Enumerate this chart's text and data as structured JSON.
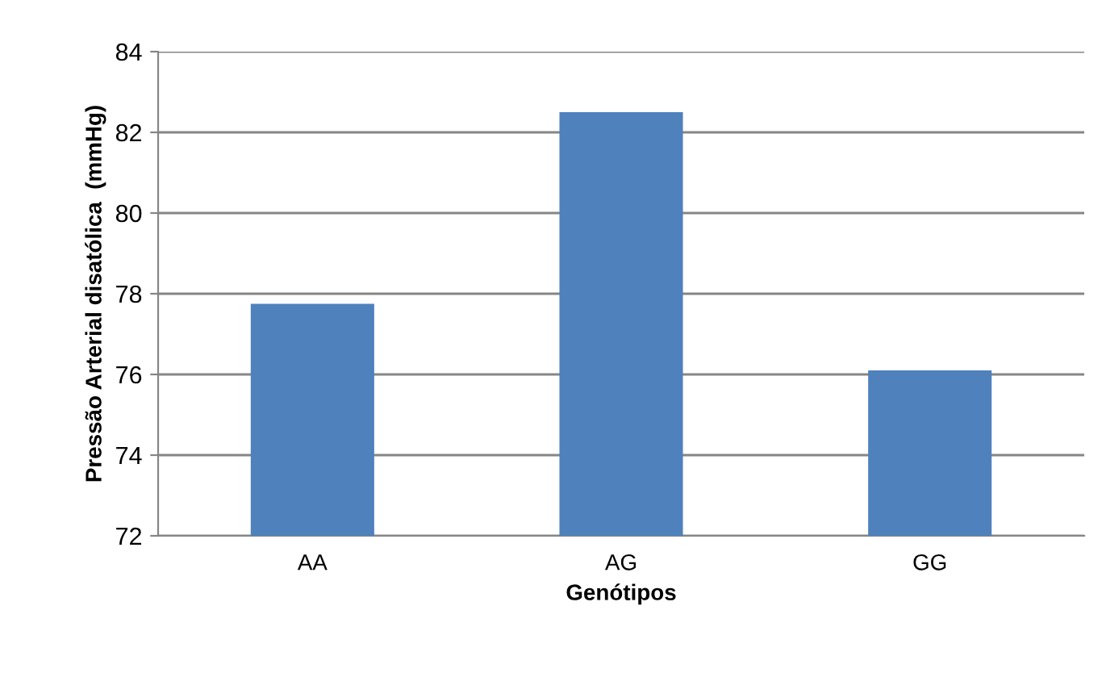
{
  "chart_data": {
    "type": "bar",
    "xlabel": "Genótipos",
    "ylabel": "Pressão Arterial disatólica  (mmHg)",
    "categories": [
      "AA",
      "AG",
      "GG"
    ],
    "values": [
      77.75,
      82.5,
      76.1
    ],
    "color": "#4f81bd",
    "ylim": [
      72,
      84
    ],
    "yticks": [
      72,
      74,
      76,
      78,
      80,
      82,
      84
    ],
    "grid": "y",
    "legend": false
  }
}
